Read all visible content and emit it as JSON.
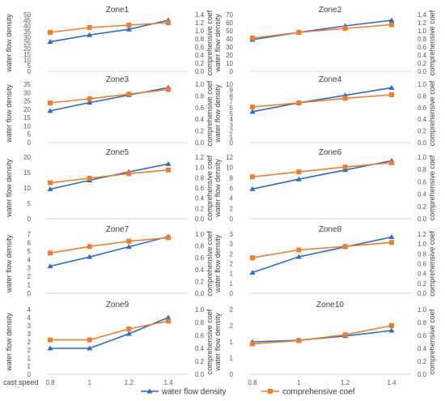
{
  "chart_data": {
    "type": "line",
    "x": [
      "0.8",
      "1",
      "1.2",
      "1.4"
    ],
    "x_axis_label": "cast speed",
    "ylabel_left": "water flow density",
    "ylabel_right": "comprehensive coef",
    "legend": {
      "position": "bottom",
      "entries": [
        "water flow density",
        "comprehensive coef"
      ]
    },
    "series_colors": {
      "water flow density": "#2E6BBF",
      "comprehensive coef": "#ED7D31"
    },
    "series_markers": {
      "water flow density": "triangle",
      "comprehensive coef": "square"
    },
    "grid": false,
    "panels": [
      {
        "title": "Zone1",
        "left_axis": {
          "ticks": [
            "0",
            "5",
            "10",
            "15",
            "20",
            "25",
            "30",
            "35",
            "40",
            "45",
            "50"
          ],
          "range": [
            0,
            50
          ]
        },
        "right_axis": {
          "ticks": [
            "0.0",
            "0.2",
            "0.4",
            "0.6",
            "0.8",
            "1.0",
            "1.2",
            "1.4"
          ],
          "range": [
            0,
            1.4
          ]
        },
        "series": [
          {
            "name": "water flow density",
            "axis": "left",
            "values": [
              26,
              32,
              37,
              45
            ]
          },
          {
            "name": "comprehensive coef",
            "axis": "right",
            "values": [
              0.96,
              1.08,
              1.14,
              1.2
            ]
          }
        ]
      },
      {
        "title": "Zone2",
        "left_axis": {
          "ticks": [
            "0",
            "10",
            "20",
            "30",
            "40",
            "50",
            "60",
            "70"
          ],
          "range": [
            0,
            70
          ]
        },
        "right_axis": {
          "ticks": [
            "0.0",
            "0.2",
            "0.4",
            "0.6",
            "0.8",
            "1.0",
            "1.2",
            "1.4"
          ],
          "range": [
            0,
            1.4
          ]
        },
        "series": [
          {
            "name": "water flow density",
            "axis": "left",
            "values": [
              39,
              48,
              56,
              63
            ]
          },
          {
            "name": "comprehensive coef",
            "axis": "right",
            "values": [
              0.82,
              0.96,
              1.06,
              1.15
            ]
          }
        ]
      },
      {
        "title": "Zone3",
        "left_axis": {
          "ticks": [
            "0",
            "5",
            "10",
            "15",
            "20",
            "25",
            "30",
            "35"
          ],
          "range": [
            0,
            35
          ]
        },
        "right_axis": {
          "ticks": [
            "0.0",
            "0.2",
            "0.4",
            "0.6",
            "0.8",
            "1.0"
          ],
          "range": [
            0,
            1.0
          ]
        },
        "series": [
          {
            "name": "water flow density",
            "axis": "left",
            "values": [
              19,
              24,
              28.5,
              33
            ]
          },
          {
            "name": "comprehensive coef",
            "axis": "right",
            "values": [
              0.68,
              0.75,
              0.83,
              0.91
            ]
          }
        ]
      },
      {
        "title": "Zone4",
        "left_axis": {
          "ticks": [
            "0",
            "1",
            "2",
            "3",
            "4",
            "5",
            "6",
            "7",
            "8",
            "9",
            "10"
          ],
          "range": [
            0,
            10
          ]
        },
        "right_axis": {
          "ticks": [
            "0.0",
            "0.2",
            "0.4",
            "0.6",
            "0.8",
            "1.0"
          ],
          "range": [
            0,
            1.0
          ]
        },
        "series": [
          {
            "name": "water flow density",
            "axis": "left",
            "values": [
              5.3,
              6.8,
              8.1,
              9.4
            ]
          },
          {
            "name": "comprehensive coef",
            "axis": "right",
            "values": [
              0.61,
              0.68,
              0.76,
              0.82
            ]
          }
        ]
      },
      {
        "title": "Zone5",
        "left_axis": {
          "ticks": [
            "0",
            "5",
            "10",
            "15",
            "20"
          ],
          "range": [
            0,
            20
          ]
        },
        "right_axis": {
          "ticks": [
            "0.0",
            "0.2",
            "0.4",
            "0.6",
            "0.8",
            "1.0",
            "1.2"
          ],
          "range": [
            0,
            1.2
          ]
        },
        "series": [
          {
            "name": "water flow density",
            "axis": "left",
            "values": [
              9.6,
              12.5,
              15.2,
              17.8
            ]
          },
          {
            "name": "comprehensive coef",
            "axis": "right",
            "values": [
              0.7,
              0.79,
              0.88,
              0.95
            ]
          }
        ]
      },
      {
        "title": "Zone6",
        "left_axis": {
          "ticks": [
            "0",
            "2",
            "4",
            "6",
            "8",
            "10",
            "12"
          ],
          "range": [
            0,
            12
          ]
        },
        "right_axis": {
          "ticks": [
            "0.0",
            "0.2",
            "0.4",
            "0.6",
            "0.8",
            "1.0"
          ],
          "range": [
            0,
            1.0
          ]
        },
        "series": [
          {
            "name": "water flow density",
            "axis": "left",
            "values": [
              5.8,
              7.7,
              9.5,
              11.3
            ]
          },
          {
            "name": "comprehensive coef",
            "axis": "right",
            "values": [
              0.68,
              0.76,
              0.84,
              0.91
            ]
          }
        ]
      },
      {
        "title": "Zone7",
        "left_axis": {
          "ticks": [
            "0",
            "1",
            "2",
            "3",
            "4",
            "5",
            "6",
            "7"
          ],
          "range": [
            0,
            7
          ]
        },
        "right_axis": {
          "ticks": [
            "0.0",
            "0.2",
            "0.4",
            "0.6",
            "0.8",
            "1.0"
          ],
          "range": [
            0,
            1.0
          ]
        },
        "series": [
          {
            "name": "water flow density",
            "axis": "left",
            "values": [
              3.2,
              4.3,
              5.5,
              6.7
            ]
          },
          {
            "name": "comprehensive coef",
            "axis": "right",
            "values": [
              0.68,
              0.79,
              0.88,
              0.94
            ]
          }
        ]
      },
      {
        "title": "Zone8",
        "left_axis": {
          "ticks": [
            "0",
            "1",
            "1",
            "2",
            "2",
            "3",
            "3"
          ],
          "range": [
            0,
            3
          ]
        },
        "right_axis": {
          "ticks": [
            "0.0",
            "0.2",
            "0.4",
            "0.6",
            "0.8",
            "1.0",
            "1.2"
          ],
          "range": [
            0,
            1.2
          ]
        },
        "series": [
          {
            "name": "water flow density",
            "axis": "left",
            "values": [
              1.05,
              1.85,
              2.35,
              2.85
            ]
          },
          {
            "name": "comprehensive coef",
            "axis": "right",
            "values": [
              0.72,
              0.88,
              0.95,
              1.03
            ]
          }
        ]
      },
      {
        "title": "Zone9",
        "left_axis": {
          "ticks": [
            "0",
            "1",
            "1",
            "2",
            "2",
            "3",
            "3",
            "4",
            "4"
          ],
          "range": [
            0,
            4
          ]
        },
        "right_axis": {
          "ticks": [
            "0.0",
            "0.2",
            "0.4",
            "0.6",
            "0.8",
            "1.0"
          ],
          "range": [
            0,
            1.0
          ]
        },
        "series": [
          {
            "name": "water flow density",
            "axis": "left",
            "values": [
              1.6,
              1.6,
              2.5,
              3.5
            ]
          },
          {
            "name": "comprehensive coef",
            "axis": "right",
            "values": [
              0.53,
              0.53,
              0.7,
              0.82
            ]
          }
        ]
      },
      {
        "title": "Zone10",
        "left_axis": {
          "ticks": [
            "0",
            "1",
            "1",
            "2",
            "2"
          ],
          "range": [
            0,
            2
          ]
        },
        "right_axis": {
          "ticks": [
            "0.0",
            "0.2",
            "0.4",
            "0.6",
            "0.8",
            "1.0"
          ],
          "range": [
            0,
            1.0
          ]
        },
        "series": [
          {
            "name": "water flow density",
            "axis": "left",
            "values": [
              1.0,
              1.05,
              1.18,
              1.35
            ]
          },
          {
            "name": "comprehensive coef",
            "axis": "right",
            "values": [
              0.47,
              0.52,
              0.61,
              0.75
            ]
          }
        ]
      }
    ]
  }
}
